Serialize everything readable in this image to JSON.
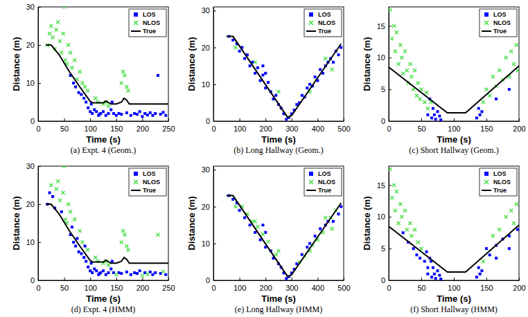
{
  "chart_data": [
    {
      "type": "scatter",
      "title": "(a) Expt. 4 (Geom.)",
      "x_label": "Time (s)",
      "y_label": "Distance (m)",
      "xlim": [
        0,
        250
      ],
      "ylim": [
        0,
        30
      ],
      "xticks": [
        0,
        50,
        100,
        150,
        200,
        250
      ],
      "yticks": [
        0,
        10,
        20,
        30
      ],
      "legend": "upper right",
      "series": [
        {
          "name": "LOS",
          "color": "#0000ff",
          "marker": "square",
          "x": [
            62,
            68,
            72,
            78,
            83,
            88,
            92,
            96,
            100,
            104,
            108,
            112,
            116,
            120,
            125,
            130,
            135,
            140,
            145,
            150,
            155,
            160,
            170,
            178,
            185,
            190,
            195,
            200,
            205,
            210,
            215,
            220,
            225,
            230,
            235,
            240,
            245,
            102,
            118,
            142
          ],
          "values": [
            12,
            10,
            9,
            7.5,
            7,
            6,
            5,
            3.5,
            2.5,
            2,
            3,
            2.5,
            1.5,
            2,
            2.5,
            1.5,
            2,
            3,
            2,
            1.5,
            2,
            1.8,
            2.2,
            1.5,
            2,
            1.8,
            2.5,
            1.2,
            2,
            1.6,
            2.2,
            1.5,
            2,
            12,
            1.8,
            2.3,
            1.5,
            4.5,
            1.8,
            5
          ]
        },
        {
          "name": "NLOS",
          "color": "#44dd44",
          "marker": "x",
          "x": [
            18,
            22,
            25,
            28,
            32,
            35,
            38,
            42,
            45,
            48,
            50,
            52,
            55,
            58,
            62,
            65,
            70,
            75,
            80,
            85,
            90,
            95,
            110,
            115,
            125,
            130,
            135,
            160,
            163,
            166,
            170,
            173
          ],
          "values": [
            20,
            23,
            25,
            22,
            19,
            24,
            26,
            21,
            18,
            23,
            30,
            16,
            15,
            20,
            18,
            14,
            16,
            11,
            13,
            10,
            9,
            8,
            6,
            5,
            4.5,
            5,
            4,
            10,
            13,
            12,
            9,
            8
          ]
        },
        {
          "name": "True",
          "color": "#000000",
          "type": "line",
          "line_style": "solid",
          "x": [
            15,
            25,
            40,
            60,
            80,
            100,
            105,
            125,
            130,
            140,
            150,
            160,
            165,
            170,
            175,
            250
          ],
          "values": [
            20,
            20,
            17.5,
            13,
            9,
            5.2,
            4.8,
            4.8,
            5.3,
            4.5,
            4.5,
            5,
            6,
            5.5,
            4.5,
            4.5
          ]
        }
      ]
    },
    {
      "type": "scatter",
      "title": "(b) Long Hallway (Geom.)",
      "x_label": "Time (s)",
      "y_label": "Distance (m)",
      "xlim": [
        0,
        500
      ],
      "ylim": [
        0,
        31
      ],
      "xticks": [
        0,
        100,
        200,
        300,
        400,
        500
      ],
      "yticks": [
        0,
        10,
        20,
        30
      ],
      "legend": "upper right",
      "series": [
        {
          "name": "LOS",
          "color": "#0000ff",
          "marker": "square",
          "x": [
            60,
            75,
            90,
            100,
            110,
            120,
            130,
            140,
            150,
            160,
            170,
            180,
            190,
            200,
            210,
            220,
            230,
            240,
            250,
            260,
            270,
            280,
            290,
            300,
            310,
            320,
            330,
            340,
            350,
            360,
            370,
            380,
            390,
            400,
            410,
            420,
            430,
            440,
            450,
            460,
            470,
            480,
            490,
            190,
            200
          ],
          "values": [
            23,
            22,
            21,
            19,
            20,
            17,
            18,
            15,
            16,
            13,
            14.5,
            11,
            12.5,
            9,
            10.5,
            8,
            6,
            7,
            4.5,
            3.5,
            2,
            0.5,
            1,
            2,
            3,
            4.5,
            5,
            7,
            6.5,
            9,
            10,
            9.5,
            12,
            11,
            14,
            13,
            15,
            16,
            17,
            16,
            19,
            18,
            20,
            15,
            13
          ]
        },
        {
          "name": "NLOS",
          "color": "#44dd44",
          "marker": "x",
          "x": [
            85,
            160,
            250,
            370,
            430,
            455
          ],
          "values": [
            20,
            16,
            8,
            8,
            17,
            14
          ]
        },
        {
          "name": "True",
          "color": "#000000",
          "type": "line",
          "line_style": "solid",
          "x": [
            50,
            75,
            285,
            300,
            490
          ],
          "values": [
            23,
            23,
            1,
            1.5,
            21
          ]
        }
      ]
    },
    {
      "type": "scatter",
      "title": "(c) Short Hallway (Geom.)",
      "x_label": "Time (s)",
      "y_label": "Distance (m)",
      "xlim": [
        0,
        200
      ],
      "ylim": [
        0,
        18
      ],
      "xticks": [
        0,
        50,
        100,
        150,
        200
      ],
      "yticks": [
        0,
        5,
        10,
        15
      ],
      "legend": "upper right",
      "series": [
        {
          "name": "LOS",
          "color": "#0000ff",
          "marker": "square",
          "x": [
            60,
            63,
            66,
            68,
            70,
            72,
            75,
            78,
            80,
            135,
            138,
            140,
            143,
            165,
            185
          ],
          "values": [
            1,
            3.5,
            0.5,
            2,
            1,
            0.3,
            1.5,
            0.8,
            0.2,
            0.5,
            2,
            1,
            1.5,
            3.5,
            5
          ]
        },
        {
          "name": "NLOS",
          "color": "#44dd44",
          "marker": "x",
          "x": [
            2,
            5,
            8,
            10,
            12,
            15,
            18,
            20,
            22,
            25,
            28,
            30,
            33,
            35,
            38,
            40,
            43,
            45,
            48,
            50,
            55,
            58,
            60,
            65,
            145,
            150,
            155,
            160,
            165,
            170,
            175,
            180,
            185,
            188,
            192,
            196,
            198
          ],
          "values": [
            17.5,
            13,
            15,
            11,
            14,
            9,
            12,
            10,
            7.5,
            11,
            8,
            6,
            9,
            7,
            5,
            8,
            4,
            6,
            3.5,
            5,
            3,
            4.5,
            2,
            3,
            3,
            5,
            4,
            7,
            5.5,
            8,
            6.5,
            10,
            7,
            11,
            9,
            12,
            8
          ]
        },
        {
          "name": "True",
          "color": "#000000",
          "type": "line",
          "line_style": "solid",
          "x": [
            0,
            90,
            118,
            200
          ],
          "values": [
            8.5,
            1.3,
            1.3,
            8.7
          ]
        }
      ]
    },
    {
      "type": "scatter",
      "title": "(d) Expt. 4 (HMM)",
      "x_label": "Time (s)",
      "y_label": "Distance (m)",
      "xlim": [
        0,
        250
      ],
      "ylim": [
        0,
        30
      ],
      "xticks": [
        0,
        50,
        100,
        150,
        200,
        250
      ],
      "yticks": [
        0,
        10,
        20,
        30
      ],
      "legend": "upper right",
      "series": [
        {
          "name": "LOS",
          "color": "#0000ff",
          "marker": "square",
          "x": [
            18,
            22,
            28,
            32,
            45,
            65,
            75,
            90,
            62,
            68,
            72,
            78,
            83,
            88,
            92,
            96,
            100,
            104,
            108,
            112,
            116,
            120,
            125,
            130,
            135,
            140,
            145,
            155,
            160,
            170,
            178,
            185,
            190,
            195,
            205,
            215,
            220,
            225,
            235,
            245,
            102,
            118,
            142
          ],
          "values": [
            20,
            23,
            22,
            19,
            18,
            14,
            11,
            9,
            12,
            10,
            9,
            7.5,
            7,
            6,
            5,
            3.5,
            2.5,
            2,
            3,
            2.5,
            1.5,
            2,
            2.5,
            1.5,
            2,
            3,
            2,
            2,
            1.8,
            2.2,
            1.5,
            2,
            1.8,
            2.5,
            2,
            2.2,
            1.5,
            2,
            1.8,
            1.5,
            4.5,
            1.8,
            5
          ]
        },
        {
          "name": "NLOS",
          "color": "#44dd44",
          "marker": "x",
          "x": [
            25,
            35,
            38,
            42,
            48,
            50,
            52,
            55,
            58,
            62,
            70,
            80,
            85,
            95,
            110,
            115,
            125,
            130,
            135,
            160,
            163,
            166,
            170,
            173,
            150,
            200,
            210,
            230,
            240
          ],
          "values": [
            25,
            24,
            26,
            21,
            23,
            30,
            16,
            15,
            20,
            18,
            16,
            13,
            10,
            8,
            6,
            5,
            4.5,
            5,
            4,
            10,
            13,
            12,
            9,
            8,
            1.5,
            1.2,
            1.6,
            12,
            2.3
          ]
        },
        {
          "name": "True",
          "color": "#000000",
          "type": "line",
          "line_style": "solid",
          "x": [
            15,
            25,
            40,
            60,
            80,
            100,
            105,
            125,
            130,
            140,
            150,
            160,
            165,
            170,
            175,
            250
          ],
          "values": [
            20,
            20,
            17.5,
            13,
            9,
            5.2,
            4.8,
            4.8,
            5.3,
            4.5,
            4.5,
            5,
            6,
            5.5,
            4.5,
            4.5
          ]
        }
      ]
    },
    {
      "type": "scatter",
      "title": "(e) Long Hallway (HMM)",
      "x_label": "Time (s)",
      "y_label": "Distance (m)",
      "xlim": [
        0,
        500
      ],
      "ylim": [
        0,
        31
      ],
      "xticks": [
        0,
        100,
        200,
        300,
        400,
        500
      ],
      "yticks": [
        0,
        10,
        20,
        30
      ],
      "legend": "upper right",
      "series": [
        {
          "name": "LOS",
          "color": "#0000ff",
          "marker": "square",
          "x": [
            60,
            75,
            90,
            100,
            120,
            140,
            160,
            180,
            200,
            220,
            230,
            250,
            260,
            270,
            280,
            290,
            300,
            310,
            320,
            340,
            360,
            370,
            390,
            410,
            430,
            440,
            460,
            480,
            490,
            190,
            200
          ],
          "values": [
            23,
            22,
            21,
            19,
            17,
            15,
            13,
            11,
            9,
            8,
            6,
            4.5,
            3.5,
            2,
            0.5,
            1,
            2,
            3,
            4.5,
            7,
            9,
            10,
            12,
            14,
            15,
            16,
            16,
            18,
            20,
            15,
            13
          ]
        },
        {
          "name": "NLOS",
          "color": "#44dd44",
          "marker": "x",
          "x": [
            85,
            160,
            250,
            370,
            430,
            455,
            110,
            130,
            150,
            170,
            190,
            210,
            240,
            330,
            350,
            380,
            400,
            420,
            450,
            470
          ],
          "values": [
            20,
            16,
            8,
            8,
            17,
            14,
            20,
            18,
            16,
            14.5,
            12.5,
            10.5,
            7,
            5,
            6.5,
            9.5,
            11,
            13,
            17,
            19
          ]
        },
        {
          "name": "True",
          "color": "#000000",
          "type": "line",
          "line_style": "solid",
          "x": [
            50,
            75,
            285,
            300,
            490
          ],
          "values": [
            23,
            23,
            1,
            1.5,
            21
          ]
        }
      ]
    },
    {
      "type": "scatter",
      "title": "(f) Short Hallway (HMM)",
      "x_label": "Time (s)",
      "y_label": "Distance (m)",
      "xlim": [
        0,
        200
      ],
      "ylim": [
        0,
        18
      ],
      "xticks": [
        0,
        50,
        100,
        150,
        200
      ],
      "yticks": [
        0,
        5,
        10,
        15
      ],
      "legend": "upper right",
      "series": [
        {
          "name": "LOS",
          "color": "#0000ff",
          "marker": "square",
          "x": [
            22,
            30,
            38,
            43,
            48,
            55,
            58,
            60,
            65,
            150,
            155,
            165,
            175,
            185,
            198,
            60,
            63,
            66,
            68,
            70,
            72,
            75,
            78,
            80,
            135,
            138,
            140,
            143,
            165,
            185
          ],
          "values": [
            7.5,
            6,
            5,
            4,
            3.5,
            3,
            4.5,
            2,
            3,
            5,
            4,
            5.5,
            6.5,
            7,
            8,
            1,
            3.5,
            0.5,
            2,
            1,
            0.3,
            1.5,
            0.8,
            0.2,
            0.5,
            2,
            1,
            1.5,
            3.5,
            5
          ]
        },
        {
          "name": "NLOS",
          "color": "#44dd44",
          "marker": "x",
          "x": [
            2,
            5,
            8,
            10,
            12,
            15,
            18,
            20,
            25,
            28,
            33,
            35,
            40,
            45,
            50,
            145,
            160,
            170,
            180,
            188,
            192,
            196
          ],
          "values": [
            17.5,
            13,
            15,
            11,
            14,
            9,
            12,
            10,
            11,
            8,
            9,
            7,
            8,
            6,
            5,
            3,
            7,
            8,
            10,
            11,
            9,
            12
          ]
        },
        {
          "name": "True",
          "color": "#000000",
          "type": "line",
          "line_style": "solid",
          "x": [
            0,
            90,
            118,
            200
          ],
          "values": [
            8.5,
            1.3,
            1.3,
            8.7
          ]
        }
      ]
    }
  ]
}
